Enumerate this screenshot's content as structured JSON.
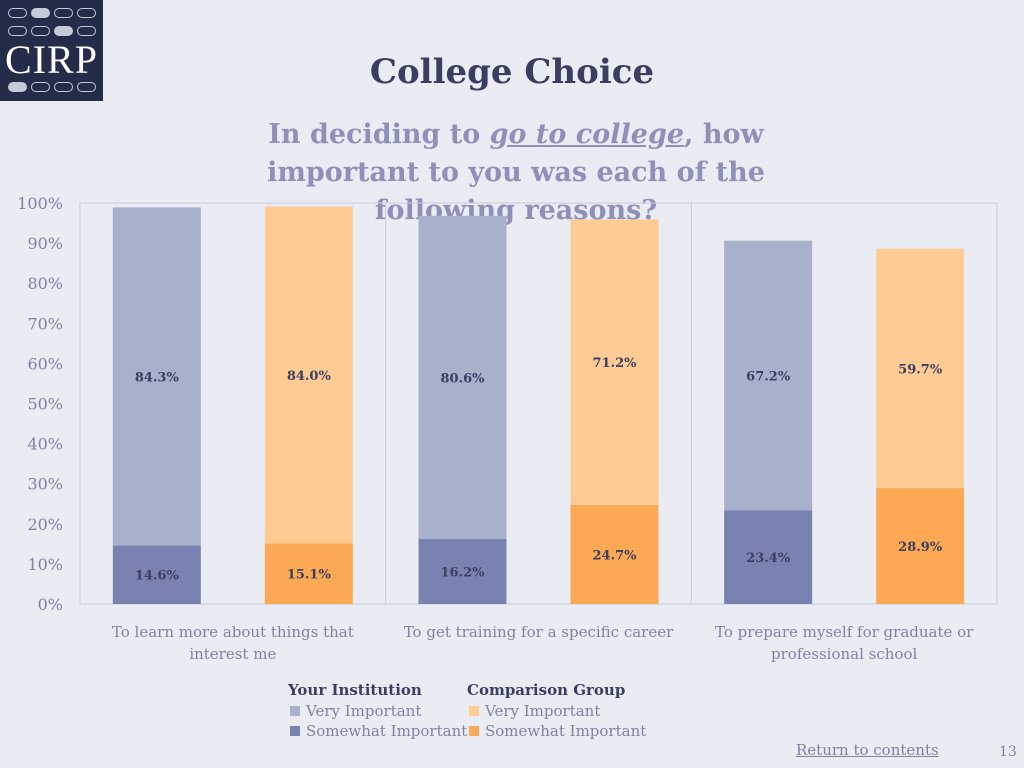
{
  "logo": {
    "text": "CIRP"
  },
  "title": "College Choice",
  "subtitle": {
    "part1": "In deciding to ",
    "emphasis": "go to college",
    "part2": ", how important to you was each of the following reasons?"
  },
  "legend": {
    "institution_title": "Your Institution",
    "comparison_title": "Comparison Group",
    "very_important": "Very Important",
    "somewhat_important": "Somewhat Important"
  },
  "footer": {
    "return_link": "Return to contents",
    "page_number": "13"
  },
  "colors": {
    "inst_very": "#a9b0cc",
    "inst_somewhat": "#7a82b2",
    "comp_very": "#fecb95",
    "comp_somewhat": "#fca955"
  },
  "chart_data": {
    "type": "bar",
    "stacked": true,
    "title": "College Choice",
    "ylim": [
      0,
      100
    ],
    "yticks": [
      "0%",
      "10%",
      "20%",
      "30%",
      "40%",
      "50%",
      "60%",
      "70%",
      "80%",
      "90%",
      "100%"
    ],
    "categories": [
      [
        "To learn more about things that",
        "interest me"
      ],
      [
        "To get training for a specific career"
      ],
      [
        "To prepare myself for graduate or",
        "professional school"
      ]
    ],
    "groups": [
      {
        "bars": [
          {
            "group": "Your Institution",
            "somewhat": 14.6,
            "very": 84.3,
            "somewhat_label": "14.6%",
            "very_label": "84.3%"
          },
          {
            "group": "Comparison Group",
            "somewhat": 15.1,
            "very": 84.0,
            "somewhat_label": "15.1%",
            "very_label": "84.0%"
          }
        ]
      },
      {
        "bars": [
          {
            "group": "Your Institution",
            "somewhat": 16.2,
            "very": 80.6,
            "somewhat_label": "16.2%",
            "very_label": "80.6%"
          },
          {
            "group": "Comparison Group",
            "somewhat": 24.7,
            "very": 71.2,
            "somewhat_label": "24.7%",
            "very_label": "71.2%"
          }
        ]
      },
      {
        "bars": [
          {
            "group": "Your Institution",
            "somewhat": 23.4,
            "very": 67.2,
            "somewhat_label": "23.4%",
            "very_label": "67.2%"
          },
          {
            "group": "Comparison Group",
            "somewhat": 28.9,
            "very": 59.7,
            "somewhat_label": "28.9%",
            "very_label": "59.7%"
          }
        ]
      }
    ]
  }
}
